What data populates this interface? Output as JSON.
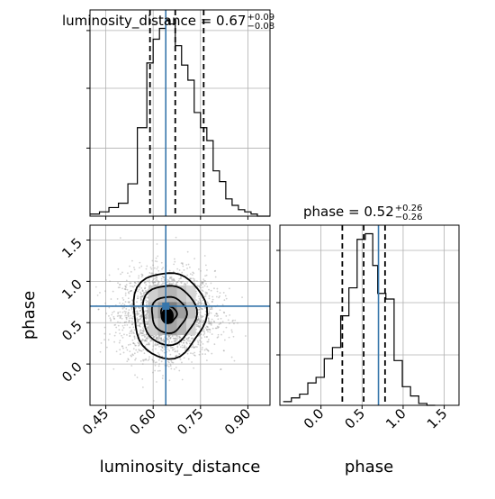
{
  "chart_data": {
    "type": "corner",
    "parameters": [
      "luminosity_distance",
      "phase"
    ],
    "truths": {
      "luminosity_distance": 0.64,
      "phase": 0.7
    },
    "truth_color": "#3776ab",
    "titles": {
      "luminosity_distance": {
        "text": "luminosity_distance = 0.67",
        "plus": "+0.09",
        "minus": "−0.08"
      },
      "phase": {
        "text": "phase = 0.52",
        "plus": "+0.26",
        "minus": "−0.26"
      }
    },
    "axes": {
      "luminosity_distance": {
        "label": "luminosity_distance",
        "range": [
          0.4,
          0.97
        ],
        "ticks": [
          0.45,
          0.6,
          0.75,
          0.9
        ],
        "tick_labels": [
          "0.45",
          "0.60",
          "0.75",
          "0.90"
        ]
      },
      "phase": {
        "label": "phase",
        "range": [
          -0.5,
          1.68
        ],
        "ticks": [
          0.0,
          0.5,
          1.0,
          1.5
        ],
        "tick_labels": [
          "0.0",
          "0.5",
          "1.0",
          "1.5"
        ]
      }
    },
    "hist_luminosity_distance": {
      "quantiles": [
        0.59,
        0.67,
        0.76
      ],
      "bin_edges": [
        0.4,
        0.43,
        0.46,
        0.49,
        0.52,
        0.55,
        0.58,
        0.6,
        0.62,
        0.64,
        0.65,
        0.67,
        0.69,
        0.71,
        0.73,
        0.75,
        0.77,
        0.79,
        0.81,
        0.83,
        0.85,
        0.87,
        0.89,
        0.91,
        0.93,
        0.97
      ],
      "counts": [
        1,
        2,
        4,
        6,
        15,
        41,
        71,
        82,
        87,
        91,
        89,
        79,
        70,
        63,
        48,
        41,
        35,
        21,
        16,
        8,
        5,
        3,
        2,
        1,
        0
      ]
    },
    "hist_phase": {
      "quantiles": [
        0.26,
        0.52,
        0.78
      ],
      "bin_edges": [
        -0.46,
        -0.36,
        -0.26,
        -0.16,
        -0.06,
        0.04,
        0.14,
        0.24,
        0.34,
        0.44,
        0.54,
        0.63,
        0.69,
        0.79,
        0.89,
        0.99,
        1.09,
        1.19,
        1.29,
        1.39
      ],
      "counts": [
        2,
        4,
        6,
        12,
        15,
        25,
        31,
        48,
        63,
        89,
        92,
        75,
        60,
        57,
        24,
        10,
        5,
        1,
        0
      ]
    },
    "density": {
      "center": [
        0.645,
        0.6
      ],
      "contour_levels": [
        "innermost",
        "inner",
        "middle",
        "outer"
      ]
    },
    "ylabel_2d": "phase",
    "grid": true
  }
}
